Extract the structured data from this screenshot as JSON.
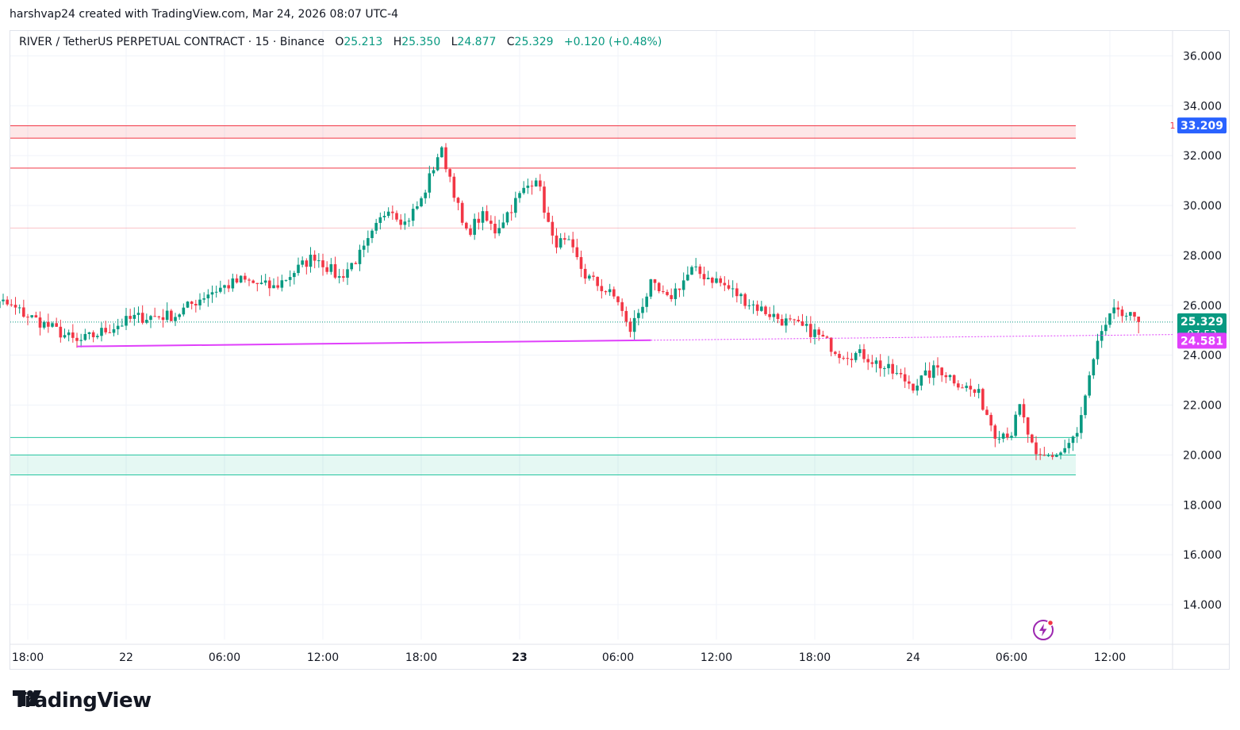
{
  "header": {
    "text": "harshvap24 created with TradingView.com, Mar 24, 2026 08:07 UTC-4"
  },
  "legend": {
    "symbol": "RIVER / TetherUS PERPETUAL CONTRACT · 15 · Binance",
    "o_label": "O",
    "o": "25.213",
    "h_label": "H",
    "h": "25.350",
    "l_label": "L",
    "l": "24.877",
    "c_label": "C",
    "c": "25.329",
    "change": "+0.120 (+0.48%)"
  },
  "brand": {
    "name": "TradingView"
  },
  "colors": {
    "up": "#089981",
    "down": "#f23645",
    "trendline": "#e040fb",
    "resistance": "#f23645",
    "support": "#26c6a0"
  },
  "chart_data": {
    "type": "candlestick",
    "y_axis": {
      "ticks": [
        "14.000",
        "16.000",
        "18.000",
        "20.000",
        "22.000",
        "24.000",
        "26.000",
        "28.000",
        "30.000",
        "32.000",
        "34.000",
        "36.000"
      ],
      "ylim": [
        12.6,
        37.0
      ],
      "position": "right"
    },
    "x_axis": {
      "ticks": [
        "18:00",
        "22",
        "06:00",
        "12:00",
        "18:00",
        "23",
        "06:00",
        "12:00",
        "18:00",
        "24",
        "06:00",
        "12:00"
      ],
      "bold_ticks": [
        "23"
      ]
    },
    "price_labels": [
      {
        "value": "33.209",
        "marker": "1",
        "color": "#2962ff"
      },
      {
        "value": "25.329",
        "sub": "07:53",
        "color": "#089981"
      },
      {
        "value": "24.581",
        "color": "#e040fb"
      }
    ],
    "zones": [
      {
        "kind": "resistance",
        "from": 32.7,
        "to": 33.2
      },
      {
        "kind": "support",
        "from": 19.2,
        "to": 20.0
      }
    ],
    "levels": [
      {
        "kind": "resistance",
        "value": 31.5
      },
      {
        "kind": "resistance-faint",
        "value": 29.1
      },
      {
        "kind": "support",
        "value": 20.7
      }
    ],
    "trendline": {
      "from": {
        "time": "21 21:00",
        "price": 24.35
      },
      "to": {
        "time": "23 08:00",
        "price": 24.6
      },
      "extended": true
    },
    "current_price": 25.329,
    "anchors": [
      {
        "t": "21 14:30",
        "price": 25.6
      },
      {
        "t": "21 16:30",
        "price": 26.1
      },
      {
        "t": "21 20:00",
        "price": 24.9
      },
      {
        "t": "21 21:00",
        "price": 24.5
      },
      {
        "t": "22 00:30",
        "price": 25.5
      },
      {
        "t": "22 03:00",
        "price": 25.6
      },
      {
        "t": "22 05:00",
        "price": 26.5
      },
      {
        "t": "22 07:00",
        "price": 27.0
      },
      {
        "t": "22 09:00",
        "price": 26.7
      },
      {
        "t": "22 11:30",
        "price": 28.0
      },
      {
        "t": "22 13:00",
        "price": 27.1
      },
      {
        "t": "22 14:30",
        "price": 28.2
      },
      {
        "t": "22 16:00",
        "price": 30.0
      },
      {
        "t": "22 17:00",
        "price": 29.3
      },
      {
        "t": "22 18:00",
        "price": 30.2
      },
      {
        "t": "22 19:10",
        "price": 32.3
      },
      {
        "t": "22 19:50",
        "price": 31.0
      },
      {
        "t": "22 20:40",
        "price": 28.8
      },
      {
        "t": "22 21:40",
        "price": 29.6
      },
      {
        "t": "22 22:30",
        "price": 29.0
      },
      {
        "t": "23 00:00",
        "price": 30.4
      },
      {
        "t": "23 01:00",
        "price": 31.2
      },
      {
        "t": "23 02:00",
        "price": 28.6
      },
      {
        "t": "23 03:00",
        "price": 28.4
      },
      {
        "t": "23 04:00",
        "price": 27.2
      },
      {
        "t": "23 06:00",
        "price": 26.2
      },
      {
        "t": "23 06:40",
        "price": 24.9
      },
      {
        "t": "23 08:00",
        "price": 26.8
      },
      {
        "t": "23 09:00",
        "price": 26.2
      },
      {
        "t": "23 10:30",
        "price": 27.4
      },
      {
        "t": "23 12:00",
        "price": 27.0
      },
      {
        "t": "23 14:00",
        "price": 26.1
      },
      {
        "t": "23 16:00",
        "price": 25.4
      },
      {
        "t": "23 18:00",
        "price": 24.9
      },
      {
        "t": "23 19:30",
        "price": 24.1
      },
      {
        "t": "23 21:00",
        "price": 24.0
      },
      {
        "t": "23 22:30",
        "price": 23.4
      },
      {
        "t": "24 00:00",
        "price": 22.8
      },
      {
        "t": "24 01:30",
        "price": 23.5
      },
      {
        "t": "24 03:00",
        "price": 22.8
      },
      {
        "t": "24 04:00",
        "price": 22.4
      },
      {
        "t": "24 05:00",
        "price": 20.9
      },
      {
        "t": "24 06:00",
        "price": 20.9
      },
      {
        "t": "24 06:30",
        "price": 21.9
      },
      {
        "t": "24 07:30",
        "price": 19.8
      },
      {
        "t": "24 09:00",
        "price": 20.1
      },
      {
        "t": "24 10:00",
        "price": 20.8
      },
      {
        "t": "24 10:45",
        "price": 23.0
      },
      {
        "t": "24 11:30",
        "price": 25.0
      },
      {
        "t": "24 12:30",
        "price": 25.9
      },
      {
        "t": "24 13:20",
        "price": 25.5
      },
      {
        "t": "24 13:50",
        "price": 25.33
      }
    ]
  }
}
